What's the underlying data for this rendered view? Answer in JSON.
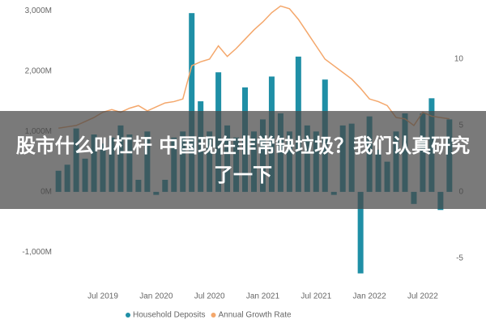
{
  "chart_data": {
    "type": "bar_line",
    "categories": [
      null,
      null,
      null,
      null,
      null,
      "Jul 2019",
      null,
      null,
      null,
      null,
      null,
      "Jan 2020",
      null,
      null,
      null,
      null,
      null,
      "Jul 2020",
      null,
      null,
      null,
      null,
      null,
      "Jan 2021",
      null,
      null,
      null,
      null,
      null,
      "Jul 2021",
      null,
      null,
      null,
      null,
      null,
      "Jan 2022",
      null,
      null,
      null,
      null,
      null,
      "Jul 2022",
      null,
      null,
      null
    ],
    "series": [
      {
        "name": "Household Deposits",
        "color": "#1f8fa6",
        "axis": "y",
        "values": [
          350,
          450,
          1050,
          550,
          950,
          800,
          900,
          1100,
          950,
          200,
          1000,
          -50,
          200,
          900,
          1000,
          2960,
          1500,
          1000,
          1980,
          1100,
          900,
          1730,
          1000,
          1200,
          1910,
          1300,
          1000,
          2240,
          1100,
          1000,
          1860,
          -50,
          1100,
          1130,
          -1350,
          1250,
          700,
          500,
          1000,
          1300,
          -200,
          1300,
          1550,
          -300,
          1200
        ]
      },
      {
        "name": "Annual Growth Rate",
        "color": "#f4a76b",
        "axis": "y2",
        "values": [
          4.8,
          4.9,
          5.0,
          5.3,
          5.6,
          6.0,
          6.2,
          6.0,
          6.3,
          6.5,
          6.1,
          6.4,
          6.7,
          6.8,
          7.0,
          9.5,
          9.8,
          10.0,
          11.0,
          10.2,
          10.8,
          11.5,
          12.2,
          12.8,
          13.5,
          14.0,
          13.8,
          13.0,
          12.0,
          11.0,
          10.0,
          9.5,
          9.0,
          8.5,
          7.8,
          7.0,
          6.8,
          6.5,
          5.6,
          5.5,
          5.0,
          6.0,
          5.7,
          5.6,
          5.5
        ]
      }
    ],
    "ylim": [
      -1450,
      3110
    ],
    "yticks": [
      {
        "value": 3000,
        "label": "3,000M"
      },
      {
        "value": 2000,
        "label": "2,000M"
      },
      {
        "value": 1000,
        "label": "1,000M"
      },
      {
        "value": 0,
        "label": "0M"
      },
      {
        "value": -1000,
        "label": "-1,000M"
      }
    ],
    "y2lim": [
      -6.6,
      14.15
    ],
    "y2ticks": [
      10,
      5,
      0,
      -5
    ],
    "legend": "bottom",
    "annotations": [
      "股市什么叫杠杆 中国现在非常缺垃圾？我们认真研究了一下"
    ]
  }
}
